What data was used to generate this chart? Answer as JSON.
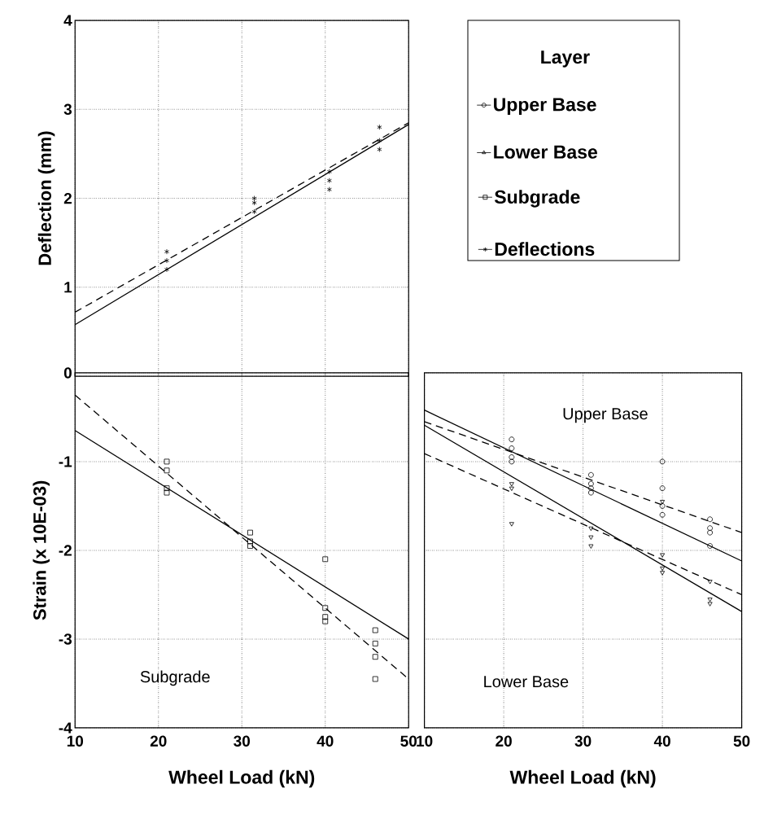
{
  "chart_data": [
    {
      "type": "scatter",
      "ylabel": "Deflection (mm)",
      "legend": "right",
      "grid": true,
      "tick_labels": "y",
      "xlim": [
        10,
        50
      ],
      "xticks": [
        10,
        20,
        30,
        40,
        50
      ],
      "ylim": [
        0,
        4
      ],
      "yticks": [
        {
          "value": 0,
          "label": null
        },
        1,
        2,
        3,
        4
      ],
      "series": [
        {
          "name": "Deflections",
          "type": "scatter",
          "marker": "cross",
          "color": "#000000",
          "x": [
            21,
            21,
            21,
            31.5,
            31.5,
            31.5,
            40.5,
            40.5,
            40.5,
            46.5,
            46.5,
            46.5
          ],
          "values": [
            1.2,
            1.3,
            1.4,
            1.85,
            1.95,
            2.0,
            2.1,
            2.2,
            2.3,
            2.55,
            2.65,
            2.8
          ]
        },
        {
          "type": "line",
          "line_style": "dashed",
          "color": "#000000",
          "x": [
            10,
            50
          ],
          "values": [
            0.72,
            2.85
          ]
        },
        {
          "type": "line",
          "line_style": "solid",
          "color": "#000000",
          "x": [
            10,
            50
          ],
          "values": [
            0.58,
            2.83
          ]
        }
      ]
    },
    {
      "type": "scatter",
      "xlabel": "Wheel Load (kN)",
      "ylabel": "Strain (x 10E-03)",
      "grid": true,
      "legend": "top right",
      "annotations": [
        "Subgrade"
      ],
      "xlim": [
        10,
        50
      ],
      "xticks": [
        10,
        20,
        30,
        40,
        50
      ],
      "ylim": [
        -4,
        0
      ],
      "yticks": [
        -4,
        -3,
        -2,
        -1,
        0
      ],
      "series": [
        {
          "name": "Subgrade",
          "type": "scatter",
          "marker": "square",
          "color": "#000000",
          "x": [
            21,
            21,
            21,
            21,
            31,
            31,
            31,
            40,
            40,
            40,
            40,
            46,
            46,
            46,
            46
          ],
          "values": [
            -1.0,
            -1.1,
            -1.3,
            -1.35,
            -1.8,
            -1.9,
            -1.95,
            -2.1,
            -2.65,
            -2.75,
            -2.8,
            -2.9,
            -3.05,
            -3.2,
            -3.45
          ]
        },
        {
          "type": "line",
          "line_style": "dashed",
          "color": "#000000",
          "x": [
            10,
            50
          ],
          "values": [
            -0.25,
            -3.45
          ]
        },
        {
          "type": "line",
          "line_style": "solid",
          "color": "#000000",
          "x": [
            10,
            50
          ],
          "values": [
            -0.65,
            -3.0
          ]
        }
      ]
    },
    {
      "type": "scatter",
      "xlabel": "Wheel Load (kN)",
      "grid": true,
      "tick_labels": "x",
      "legend": "top",
      "legend_title": "Layer",
      "annotations": [
        "Upper Base",
        "Lower Base"
      ],
      "xlim": [
        10,
        50
      ],
      "xticks": [
        10,
        20,
        30,
        40,
        50
      ],
      "ylim": [
        -4,
        0
      ],
      "yticks": [
        -4,
        -3,
        -2,
        -1,
        0
      ],
      "series": [
        {
          "name": "Upper Base",
          "type": "scatter",
          "marker": "circle",
          "color": "#000000",
          "x": [
            21,
            21,
            21,
            21,
            31,
            31,
            31,
            31,
            40,
            40,
            40,
            40,
            46,
            46,
            46,
            46
          ],
          "values": [
            -0.75,
            -0.85,
            -0.95,
            -1.0,
            -1.15,
            -1.25,
            -1.3,
            -1.35,
            -1.0,
            -1.3,
            -1.5,
            -1.6,
            -1.65,
            -1.75,
            -1.8,
            -1.95
          ]
        },
        {
          "name": "Lower Base",
          "type": "scatter",
          "marker": "triangle",
          "color": "#000000",
          "x": [
            21,
            21,
            21,
            31,
            31,
            31,
            40,
            40,
            40,
            40,
            46,
            46,
            46
          ],
          "values": [
            -1.25,
            -1.3,
            -1.7,
            -1.75,
            -1.85,
            -1.95,
            -1.45,
            -2.05,
            -2.2,
            -2.25,
            -2.35,
            -2.55,
            -2.6
          ]
        },
        {
          "type": "line",
          "line_style": "dashed",
          "color": "#000000",
          "x": [
            10,
            50
          ],
          "values": [
            -0.55,
            -1.8
          ]
        },
        {
          "type": "line",
          "line_style": "solid",
          "color": "#000000",
          "x": [
            10,
            50
          ],
          "values": [
            -0.42,
            -2.12
          ]
        },
        {
          "type": "line",
          "line_style": "dashed",
          "color": "#000000",
          "x": [
            10,
            50
          ],
          "values": [
            -0.91,
            -2.5
          ]
        },
        {
          "type": "line",
          "line_style": "solid",
          "color": "#000000",
          "x": [
            10,
            50
          ],
          "values": [
            -0.59,
            -2.69
          ]
        }
      ]
    }
  ]
}
